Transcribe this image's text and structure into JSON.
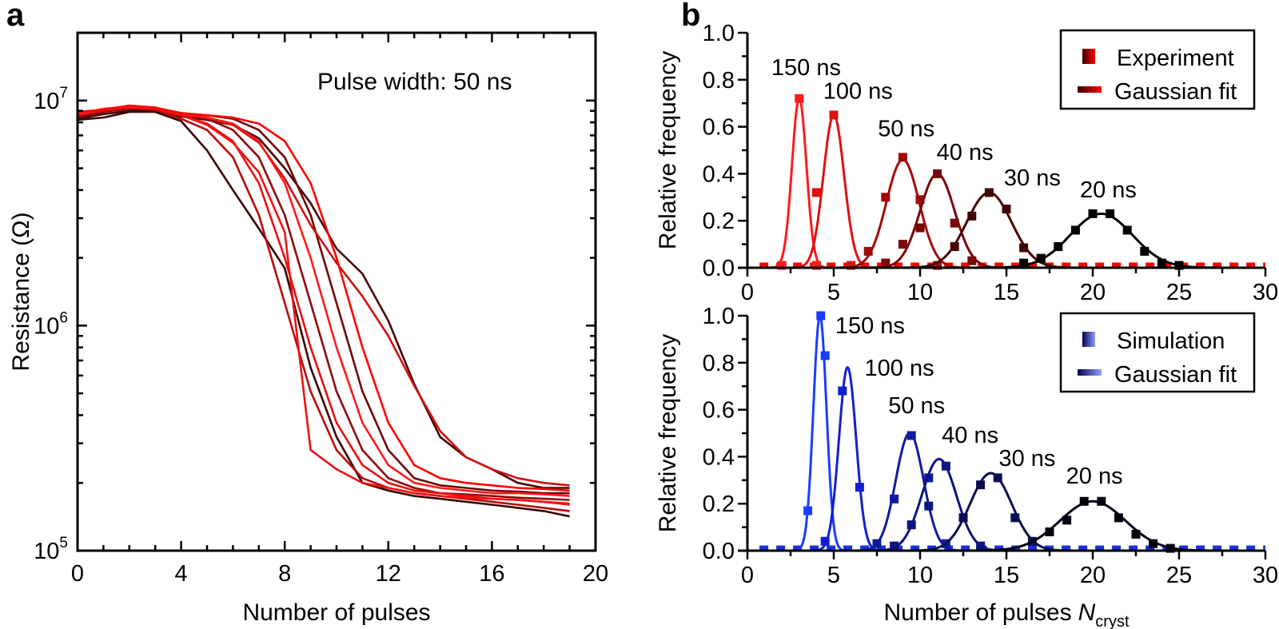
{
  "panels": {
    "a": "a",
    "b": "b"
  },
  "chart_data": [
    {
      "type": "line",
      "panel": "a",
      "annotation": "Pulse width: 50 ns",
      "xlabel": "Number of pulses",
      "ylabel": "Resistance (Ω)",
      "xlim": [
        0,
        20
      ],
      "ylim": [
        100000,
        20000000
      ],
      "yscale": "log",
      "xticks": [
        "0",
        "4",
        "8",
        "12",
        "16",
        "20"
      ],
      "xtick_values": [
        0,
        4,
        8,
        12,
        16,
        20
      ],
      "yticks": [
        {
          "base": "10",
          "exp": "5",
          "value": 100000
        },
        {
          "base": "10",
          "exp": "6",
          "value": 1000000
        },
        {
          "base": "10",
          "exp": "7",
          "value": 10000000
        }
      ],
      "grid": false,
      "x": [
        0,
        1,
        2,
        3,
        4,
        5,
        6,
        7,
        8,
        9,
        10,
        11,
        12,
        13,
        14,
        15,
        16,
        17,
        18,
        19
      ],
      "series": [
        {
          "color": "#3a0303",
          "values": [
            8200000.0,
            8400000.0,
            8900000.0,
            8900000.0,
            8100000.0,
            6000000.0,
            4000000.0,
            2700000.0,
            1800000.0,
            650000.0,
            320000.0,
            200000.0,
            185000.0,
            175000.0,
            170000.0,
            165000.0,
            160000.0,
            155000.0,
            150000.0,
            142000.0
          ]
        },
        {
          "color": "#4a0505",
          "values": [
            8300000.0,
            8700000.0,
            9000000.0,
            9000000.0,
            8500000.0,
            8200000.0,
            7800000.0,
            6800000.0,
            5000000.0,
            3500000.0,
            2200000.0,
            1700000.0,
            1050000.0,
            550000.0,
            320000.0,
            260000.0,
            230000.0,
            200000.0,
            190000.0,
            190000.0
          ]
        },
        {
          "color": "#700707",
          "values": [
            8400000.0,
            8900000.0,
            9200000.0,
            9100000.0,
            8600000.0,
            8600000.0,
            8300000.0,
            7400000.0,
            5600000.0,
            3100000.0,
            1260000.0,
            510000.0,
            280000.0,
            210000.0,
            195000.0,
            190000.0,
            185000.0,
            183000.0,
            180000.0,
            180000.0
          ]
        },
        {
          "color": "#900909",
          "values": [
            8500000.0,
            9000000.0,
            9300000.0,
            9200000.0,
            8600000.0,
            8300000.0,
            7400000.0,
            5600000.0,
            3100000.0,
            1260000.0,
            510000.0,
            280000.0,
            210000.0,
            190000.0,
            180000.0,
            178000.0,
            175000.0,
            172000.0,
            170000.0,
            168000.0
          ]
        },
        {
          "color": "#b80b0b",
          "values": [
            8600000.0,
            9000000.0,
            9300000.0,
            9100000.0,
            8300000.0,
            7400000.0,
            5600000.0,
            3100000.0,
            1260000.0,
            510000.0,
            280000.0,
            210000.0,
            190000.0,
            180000.0,
            175000.0,
            170000.0,
            165000.0,
            160000.0,
            155000.0,
            150000.0
          ]
        },
        {
          "color": "#d01010",
          "values": [
            8600000.0,
            9000000.0,
            9300000.0,
            9200000.0,
            8700000.0,
            8400000.0,
            7800000.0,
            6500000.0,
            4500000.0,
            2800000.0,
            1900000.0,
            1350000.0,
            900000.0,
            540000.0,
            340000.0,
            260000.0,
            230000.0,
            210000.0,
            200000.0,
            195000.0
          ]
        },
        {
          "color": "#e81010",
          "values": [
            8800000.0,
            9100000.0,
            9400000.0,
            9200000.0,
            8600000.0,
            7900000.0,
            6600000.0,
            4300000.0,
            2000000.0,
            800000.0,
            370000.0,
            240000.0,
            200000.0,
            185000.0,
            180000.0,
            175000.0,
            170000.0,
            168000.0,
            165000.0,
            160000.0
          ]
        },
        {
          "color": "#f01212",
          "values": [
            8700000.0,
            9100000.0,
            9300000.0,
            9200000.0,
            8600000.0,
            7800000.0,
            6500000.0,
            4800000.0,
            2600000.0,
            280000.0,
            230000.0,
            200000.0,
            190000.0,
            180000.0,
            175000.0,
            172000.0,
            170000.0,
            168000.0,
            165000.0,
            162000.0
          ]
        },
        {
          "color": "#ff1a1a",
          "values": [
            8700000.0,
            9200000.0,
            9400000.0,
            9300000.0,
            8700000.0,
            8400000.0,
            7900000.0,
            6600000.0,
            4300000.0,
            2000000.0,
            800000.0,
            370000.0,
            240000.0,
            200000.0,
            190000.0,
            185000.0,
            180000.0,
            180000.0,
            178000.0,
            175000.0
          ]
        },
        {
          "color": "#ff0000",
          "values": [
            8900000.0,
            9100000.0,
            9500000.0,
            9300000.0,
            8800000.0,
            8600000.0,
            8400000.0,
            7900000.0,
            6600000.0,
            4300000.0,
            2000000.0,
            800000.0,
            370000.0,
            240000.0,
            210000.0,
            200000.0,
            195000.0,
            190000.0,
            188000.0,
            185000.0
          ]
        }
      ]
    },
    {
      "type": "scatter",
      "panel": "b-top",
      "xlabel": "",
      "ylabel": "Relative frequency",
      "xlim": [
        0,
        30
      ],
      "ylim": [
        0,
        1.0
      ],
      "xticks": [
        "0",
        "5",
        "10",
        "15",
        "20",
        "25",
        "30"
      ],
      "xtick_values": [
        0,
        5,
        10,
        15,
        20,
        25,
        30
      ],
      "yticks": [
        "0.0",
        "0.2",
        "0.4",
        "0.6",
        "0.8",
        "1.0"
      ],
      "ytick_values": [
        0,
        0.2,
        0.4,
        0.6,
        0.8,
        1.0
      ],
      "legend": {
        "position": "top-right",
        "entries": [
          "Experiment",
          "Gaussian fit"
        ],
        "gradient": [
          "#3a0000",
          "#ff0000"
        ]
      },
      "baseline": {
        "value": 0.01,
        "color": "#ff0000"
      },
      "series": [
        {
          "label": "150 ns",
          "label_at": [
            3.4,
            0.82
          ],
          "color": "#ff1a1a",
          "fit": {
            "mean": 3.0,
            "sigma": 0.42,
            "peak": 0.72
          },
          "points": [
            [
              3,
              0.72
            ],
            [
              2,
              0.01
            ],
            [
              4,
              0.01
            ]
          ]
        },
        {
          "label": "100 ns",
          "label_at": [
            6.4,
            0.72
          ],
          "color": "#e01010",
          "fit": {
            "mean": 5.0,
            "sigma": 0.6,
            "peak": 0.65
          },
          "points": [
            [
              4,
              0.32
            ],
            [
              5,
              0.65
            ],
            [
              6,
              0.01
            ]
          ]
        },
        {
          "label": "50 ns",
          "label_at": [
            9.2,
            0.56
          ],
          "color": "#a00a0a",
          "fit": {
            "mean": 9.0,
            "sigma": 0.95,
            "peak": 0.46
          },
          "points": [
            [
              7,
              0.07
            ],
            [
              8,
              0.3
            ],
            [
              9,
              0.47
            ],
            [
              10,
              0.29
            ],
            [
              11,
              0.01
            ]
          ]
        },
        {
          "label": "40 ns",
          "label_at": [
            12.6,
            0.46
          ],
          "color": "#7a0808",
          "fit": {
            "mean": 11.0,
            "sigma": 1.0,
            "peak": 0.4
          },
          "points": [
            [
              8,
              0.02
            ],
            [
              9,
              0.1
            ],
            [
              10,
              0.17
            ],
            [
              11,
              0.4
            ],
            [
              12,
              0.19
            ],
            [
              13,
              0.03
            ]
          ]
        },
        {
          "label": "30 ns",
          "label_at": [
            16.5,
            0.35
          ],
          "color": "#450404",
          "fit": {
            "mean": 14.0,
            "sigma": 1.3,
            "peak": 0.32
          },
          "points": [
            [
              12,
              0.09
            ],
            [
              13,
              0.22
            ],
            [
              14,
              0.32
            ],
            [
              15,
              0.25
            ],
            [
              16,
              0.085
            ],
            [
              17,
              0.04
            ]
          ]
        },
        {
          "label": "20 ns",
          "label_at": [
            20.9,
            0.3
          ],
          "color": "#000000",
          "fit": {
            "mean": 20.5,
            "sigma": 1.8,
            "peak": 0.23
          },
          "points": [
            [
              16,
              0.02
            ],
            [
              17,
              0.04
            ],
            [
              18,
              0.09
            ],
            [
              19,
              0.16
            ],
            [
              20,
              0.23
            ],
            [
              21,
              0.23
            ],
            [
              22,
              0.16
            ],
            [
              23,
              0.07
            ],
            [
              24,
              0.02
            ],
            [
              25,
              0.01
            ]
          ]
        }
      ]
    },
    {
      "type": "scatter",
      "panel": "b-bottom",
      "xlabel": "Number of pulses",
      "xlabel_italic": "N",
      "xlabel_sub": "cryst",
      "ylabel": "Relative frequency",
      "xlim": [
        0,
        30
      ],
      "ylim": [
        0,
        1.0
      ],
      "xticks": [
        "0",
        "5",
        "10",
        "15",
        "20",
        "25",
        "30"
      ],
      "xtick_values": [
        0,
        5,
        10,
        15,
        20,
        25,
        30
      ],
      "yticks": [
        "0.0",
        "0.2",
        "0.4",
        "0.6",
        "0.8",
        "1.0"
      ],
      "ytick_values": [
        0,
        0.2,
        0.4,
        0.6,
        0.8,
        1.0
      ],
      "legend": {
        "position": "top-right",
        "entries": [
          "Simulation",
          "Gaussian fit"
        ],
        "gradient": [
          "#000050",
          "#8fa0ff"
        ]
      },
      "baseline": {
        "value": 0.01,
        "color": "#1a30e0"
      },
      "series": [
        {
          "label": "150 ns",
          "label_at": [
            7.1,
            0.925
          ],
          "color": "#1a3cff",
          "fit": {
            "mean": 4.2,
            "sigma": 0.38,
            "peak": 1.0
          },
          "points": [
            [
              3.5,
              0.17
            ],
            [
              4.25,
              1.0
            ],
            [
              4.5,
              0.83
            ]
          ]
        },
        {
          "label": "100 ns",
          "label_at": [
            8.8,
            0.745
          ],
          "color": "#1020d0",
          "fit": {
            "mean": 5.8,
            "sigma": 0.5,
            "peak": 0.78
          },
          "points": [
            [
              4.5,
              0.04
            ],
            [
              5.5,
              0.68
            ],
            [
              6.5,
              0.27
            ]
          ]
        },
        {
          "label": "50 ns",
          "label_at": [
            9.8,
            0.585
          ],
          "color": "#101aa0",
          "fit": {
            "mean": 9.4,
            "sigma": 0.8,
            "peak": 0.5
          },
          "points": [
            [
              7.5,
              0.03
            ],
            [
              8.5,
              0.22
            ],
            [
              9.5,
              0.49
            ],
            [
              10.5,
              0.31
            ],
            [
              11.5,
              0.03
            ]
          ]
        },
        {
          "label": "40 ns",
          "label_at": [
            12.9,
            0.46
          ],
          "color": "#0c1480",
          "fit": {
            "mean": 11.1,
            "sigma": 1.0,
            "peak": 0.39
          },
          "points": [
            [
              8.5,
              0.02
            ],
            [
              9.5,
              0.11
            ],
            [
              10.5,
              0.19
            ],
            [
              11.5,
              0.36
            ],
            [
              12.5,
              0.14
            ],
            [
              13.5,
              0.02
            ]
          ]
        },
        {
          "label": "30 ns",
          "label_at": [
            16.2,
            0.36
          ],
          "color": "#0a0f50",
          "fit": {
            "mean": 14.1,
            "sigma": 1.2,
            "peak": 0.33
          },
          "points": [
            [
              12.5,
              0.14
            ],
            [
              13.5,
              0.28
            ],
            [
              14.5,
              0.31
            ],
            [
              15.5,
              0.14
            ],
            [
              16.5,
              0.04
            ]
          ]
        },
        {
          "label": "20 ns",
          "label_at": [
            20.1,
            0.285
          ],
          "color": "#000010",
          "fit": {
            "mean": 20.0,
            "sigma": 1.9,
            "peak": 0.21
          },
          "points": [
            [
              17.5,
              0.08
            ],
            [
              18.5,
              0.13
            ],
            [
              19.5,
              0.21
            ],
            [
              20.5,
              0.21
            ],
            [
              21.5,
              0.14
            ],
            [
              22.5,
              0.07
            ],
            [
              23.5,
              0.03
            ],
            [
              24.5,
              0.01
            ]
          ]
        }
      ]
    }
  ]
}
